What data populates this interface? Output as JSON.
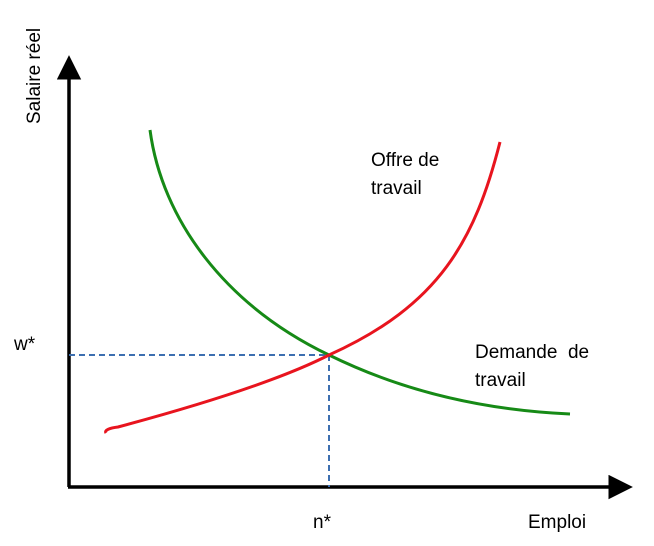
{
  "axes": {
    "y_label": "Salaire réel",
    "x_label": "Emploi"
  },
  "equilibrium": {
    "wage_label": "w*",
    "employment_label": "n*"
  },
  "curves": {
    "supply": {
      "label_line1": "Offre de",
      "label_line2": "travail",
      "color": "#e8141e"
    },
    "demand": {
      "label_line1": "Demande  de",
      "label_line2": "travail",
      "color": "#168a16"
    }
  },
  "colors": {
    "axis": "#000000",
    "guide": "#3d6fb0"
  }
}
